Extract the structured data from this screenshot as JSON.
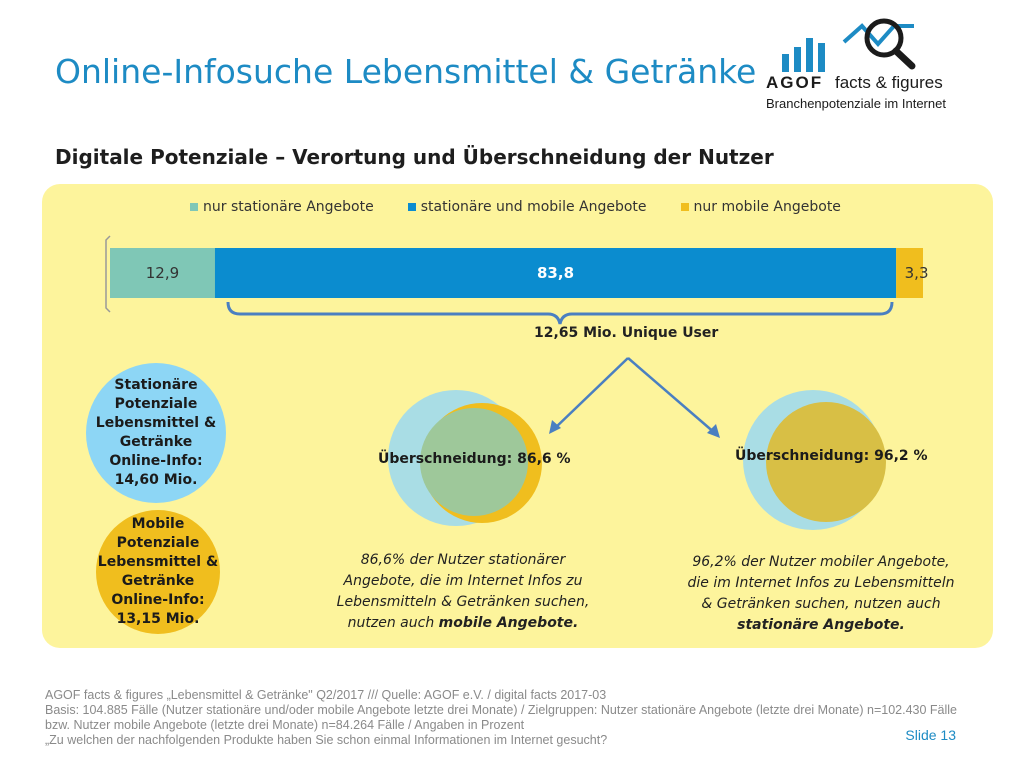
{
  "header": {
    "title": "Online-Infosuche Lebensmittel & Getränke",
    "subtitle": "Digitale Potenziale – Verortung und Überschneidung der Nutzer"
  },
  "logo": {
    "word": "AGOF",
    "tagline": "facts & figures",
    "sub": "Branchenpotenziale im Internet",
    "icon": "magnifier-chart-icon"
  },
  "chart_data": {
    "type": "bar",
    "orientation": "horizontal-stacked",
    "categories": [
      ""
    ],
    "series": [
      {
        "name": "nur stationäre Angebote",
        "values": [
          12.9
        ],
        "label": "12,9",
        "color": "#7fc7b6"
      },
      {
        "name": "stationäre und mobile Angebote",
        "values": [
          83.8
        ],
        "label": "83,8",
        "color": "#0b8ccf"
      },
      {
        "name": "nur mobile Angebote",
        "values": [
          3.3
        ],
        "label": "3,3",
        "color": "#f0be1e"
      }
    ],
    "xlim": [
      0,
      100
    ],
    "legend": "top",
    "grid": false,
    "annotation": "12,65 Mio. Unique User"
  },
  "potentials": {
    "stationary": {
      "line1": "Stationäre Potenziale",
      "line2": "Lebensmittel & Getränke",
      "line3": "Online-Info:",
      "line4": "14,60 Mio.",
      "color": "#8dd6f5"
    },
    "mobile": {
      "line1": "Mobile Potenziale",
      "line2": "Lebensmittel & Getränke",
      "line3": "Online-Info:",
      "line4": "13,15 Mio.",
      "color": "#f0be1e"
    }
  },
  "overlap": {
    "left": {
      "label": "Überschneidung: 86,6 %",
      "desc_l1": "86,6% der Nutzer stationärer",
      "desc_l2": "Angebote, die im Internet Infos zu",
      "desc_l3": "Lebensmitteln & Getränken suchen,",
      "desc_l4_pre": "nutzen auch ",
      "desc_l4_bold": "mobile Angebote."
    },
    "right": {
      "label": "Überschneidung: 96,2 %",
      "desc_l1": "96,2% der Nutzer mobiler Angebote,",
      "desc_l2": "die im Internet Infos zu Lebensmitteln",
      "desc_l3": "& Getränken suchen, nutzen auch",
      "desc_l4_bold": "stationäre Angebote."
    }
  },
  "footer": {
    "line1": "AGOF facts & figures „Lebensmittel & Getränke\" Q2/2017 /// Quelle: AGOF e.V. / digital facts 2017-03",
    "line2": "Basis: 104.885 Fälle (Nutzer stationäre und/oder mobile Angebote letzte drei Monate) / Zielgruppen: Nutzer stationäre Angebote (letzte drei Monate) n=102.430 Fälle bzw. Nutzer mobile Angebote (letzte drei Monate) n=84.264 Fälle / Angaben in Prozent",
    "line3": "„Zu welchen der nachfolgenden Produkte haben Sie schon einmal Informationen im Internet gesucht?",
    "slide": "Slide 13"
  },
  "colors": {
    "accent": "#1d8bc4",
    "panel": "#fdf49c",
    "venn_light": "#a9dde5",
    "venn_mid": "#9ec89a",
    "venn_yellow": "#f0be1e",
    "arrow": "#4a7fc1"
  }
}
